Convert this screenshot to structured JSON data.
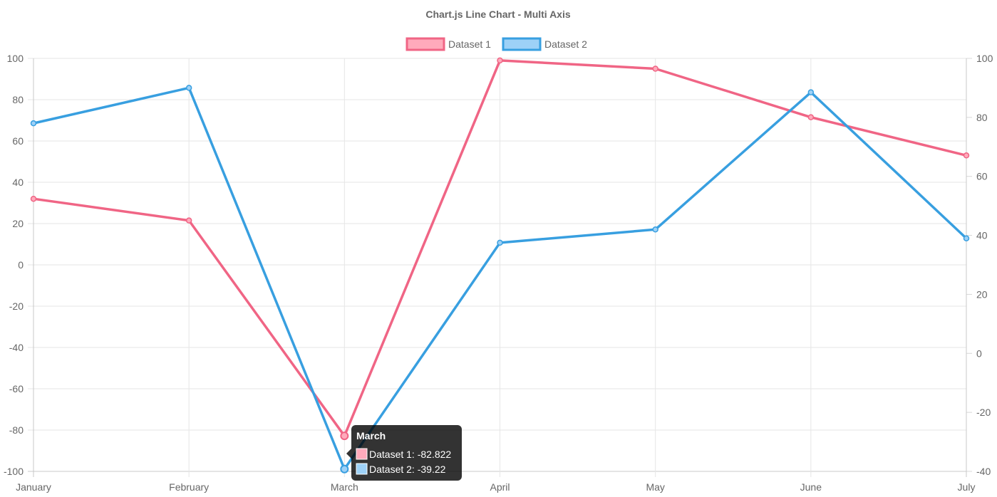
{
  "chart_data": {
    "type": "line",
    "title": "Chart.js Line Chart - Multi Axis",
    "categories": [
      "January",
      "February",
      "March",
      "April",
      "May",
      "June",
      "July"
    ],
    "series": [
      {
        "name": "Dataset 1",
        "axis": "left",
        "border_color": "#f06585",
        "fill_color": "#ffaabb",
        "values": [
          32,
          21.5,
          -82.822,
          99,
          95,
          71.5,
          53
        ]
      },
      {
        "name": "Dataset 2",
        "axis": "right",
        "border_color": "#389fe0",
        "fill_color": "#9dd1f7",
        "values": [
          78,
          90,
          -39.22,
          37.5,
          42,
          88.5,
          39
        ]
      }
    ],
    "y_left": {
      "min": -100,
      "max": 100,
      "step": 20
    },
    "y_right": {
      "min": -40,
      "max": 100,
      "step": 20
    },
    "grid": true,
    "legend_position": "top",
    "tooltip": {
      "title": "March",
      "lines": [
        "Dataset 1: -82.822",
        "Dataset 2: -39.22"
      ]
    }
  }
}
